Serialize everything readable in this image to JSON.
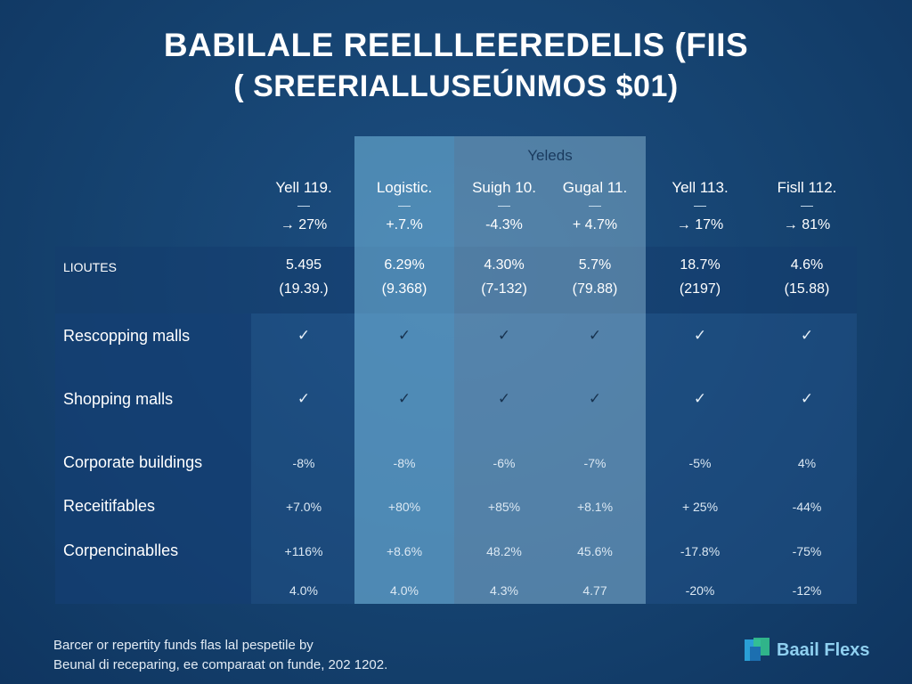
{
  "title_line1": "BABILALE REELLLEEREDELIS (FIIS",
  "title_line2": "( SREERIALLUSEÚNMOS $01)",
  "group_header": "Yeleds",
  "columns": [
    {
      "name": "Yell 119.",
      "dash": "—",
      "change": "→ 27%",
      "liq_pct": "5.495",
      "liq_paren": "(19.39.)"
    },
    {
      "name": "Logistic.",
      "dash": "—",
      "change": "+.7.%",
      "liq_pct": "6.29%",
      "liq_paren": "(9.368)"
    },
    {
      "name": "Suigh 10.",
      "dash": "—",
      "change": "-4.3%",
      "liq_pct": "4.30%",
      "liq_paren": "(7-132)"
    },
    {
      "name": "Gugal 11.",
      "dash": "—",
      "change": "+ 4.7%",
      "liq_pct": "5.7%",
      "liq_paren": "(79.88)"
    },
    {
      "name": "Yell 113.",
      "dash": "—",
      "change": "→ 17%",
      "liq_pct": "18.7%",
      "liq_paren": "(2197)"
    },
    {
      "name": "Fisll 112.",
      "dash": "—",
      "change": "→ 81%",
      "liq_pct": "4.6%",
      "liq_paren": "(15.88)"
    }
  ],
  "liq_label": "LIOUTES",
  "rows": [
    {
      "label": "Rescopping malls",
      "values": [
        "✓",
        "✓",
        "✓",
        "✓",
        "✓",
        "✓"
      ]
    },
    {
      "label": "Shopping malls",
      "values": [
        "✓",
        "✓",
        "✓",
        "✓",
        "✓",
        "✓"
      ]
    },
    {
      "label": "Corporate buildings",
      "values": [
        "-8%",
        "-8%",
        "-6%",
        "-7%",
        "-5%",
        "4%"
      ]
    },
    {
      "label": "Receitifables",
      "values": [
        "+7.0%",
        "+80%",
        "+85%",
        "+8.1%",
        "+ 25%",
        "-44%"
      ]
    },
    {
      "label": "Corpencinablles",
      "values": [
        "+116%",
        "+8.6%",
        "48.2%",
        "45.6%",
        "-17.8%",
        "-75%"
      ]
    },
    {
      "label": "",
      "values": [
        "4.0%",
        "4.0%",
        "4.3%",
        "4.77",
        "-20%",
        "-12%"
      ]
    }
  ],
  "footer_line1": "Barcer or repertity funds flas lal pespetile by",
  "footer_line2": "Beunal di receparing, ee comparaat on funde, 202 1202.",
  "brand": "Baail Flexs",
  "colors": {
    "bg": "#15426f",
    "highlight_a": "#78bee1",
    "highlight_b": "#96c3dc",
    "brand": "#8fd0f0"
  },
  "chart_data": {
    "type": "table",
    "title": "BABILALE REELLLEEREDELIS (FIIS ( SREERIALLUSEÚNMOS $01)",
    "columns": [
      "Yell 119.",
      "Logistic.",
      "Suigh 10.",
      "Gugal 11.",
      "Yell 113.",
      "Fisll 112."
    ],
    "header_changes": [
      "→ 27%",
      "+.7.%",
      "-4.3%",
      "+ 4.7%",
      "→ 17%",
      "→ 81%"
    ],
    "liquidity": {
      "label": "LIOUTES",
      "values": [
        "5.495",
        "6.29%",
        "4.30%",
        "5.7%",
        "18.7%",
        "4.6%"
      ],
      "notes": [
        "(19.39.)",
        "(9.368)",
        "(7-132)",
        "(79.88)",
        "(2197)",
        "(15.88)"
      ]
    },
    "rows": [
      {
        "label": "Rescopping malls",
        "values": [
          "✓",
          "✓",
          "✓",
          "✓",
          "✓",
          "✓"
        ]
      },
      {
        "label": "Shopping malls",
        "values": [
          "✓",
          "✓",
          "✓",
          "✓",
          "✓",
          "✓"
        ]
      },
      {
        "label": "Corporate buildings",
        "values": [
          "-8%",
          "-8%",
          "-6%",
          "-7%",
          "-5%",
          "4%"
        ]
      },
      {
        "label": "Receitifables",
        "values": [
          "+7.0%",
          "+80%",
          "+85%",
          "+8.1%",
          "+ 25%",
          "-44%"
        ]
      },
      {
        "label": "Corpencinablles",
        "values": [
          "+116%",
          "+8.6%",
          "48.2%",
          "45.6%",
          "-17.8%",
          "-75%"
        ]
      },
      {
        "label": "",
        "values": [
          "4.0%",
          "4.0%",
          "4.3%",
          "4.77",
          "-20%",
          "-12%"
        ]
      }
    ]
  }
}
